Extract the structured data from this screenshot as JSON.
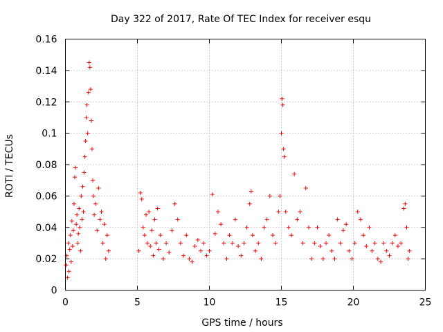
{
  "chart_data": {
    "type": "scatter",
    "title": "Day 322 of 2017, Rate Of TEC Index for receiver esqu",
    "xlabel": "GPS time / hours",
    "ylabel": "ROTI / TECUs",
    "xlim": [
      0,
      25
    ],
    "ylim": [
      0,
      0.16
    ],
    "xticks": [
      0,
      5,
      10,
      15,
      20,
      25
    ],
    "xtick_labels": [
      "0",
      "5",
      "10",
      "15",
      "20",
      "25"
    ],
    "yticks": [
      0,
      0.02,
      0.04,
      0.06,
      0.08,
      0.1,
      0.12,
      0.14,
      0.16
    ],
    "ytick_labels": [
      "0",
      "0.02",
      "0.04",
      "0.06",
      "0.08",
      "0.1",
      "0.12",
      "0.14",
      "0.16"
    ],
    "grid": true,
    "marker": "+",
    "marker_color": "#ff0000",
    "series": [
      {
        "name": "ROTI",
        "points": [
          [
            0.05,
            0.016
          ],
          [
            0.1,
            0.022
          ],
          [
            0.15,
            0.008
          ],
          [
            0.2,
            0.03
          ],
          [
            0.25,
            0.012
          ],
          [
            0.3,
            0.026
          ],
          [
            0.35,
            0.035
          ],
          [
            0.4,
            0.018
          ],
          [
            0.45,
            0.044
          ],
          [
            0.5,
            0.028
          ],
          [
            0.55,
            0.038
          ],
          [
            0.6,
            0.055
          ],
          [
            0.65,
            0.072
          ],
          [
            0.7,
            0.078
          ],
          [
            0.75,
            0.042
          ],
          [
            0.8,
            0.048
          ],
          [
            0.85,
            0.03
          ],
          [
            0.9,
            0.036
          ],
          [
            0.95,
            0.052
          ],
          [
            1.0,
            0.04
          ],
          [
            1.05,
            0.025
          ],
          [
            1.1,
            0.06
          ],
          [
            1.15,
            0.045
          ],
          [
            1.2,
            0.066
          ],
          [
            1.25,
            0.05
          ],
          [
            1.3,
            0.075
          ],
          [
            1.35,
            0.085
          ],
          [
            1.4,
            0.095
          ],
          [
            1.45,
            0.11
          ],
          [
            1.5,
            0.118
          ],
          [
            1.55,
            0.1
          ],
          [
            1.6,
            0.126
          ],
          [
            1.65,
            0.145
          ],
          [
            1.7,
            0.142
          ],
          [
            1.75,
            0.128
          ],
          [
            1.8,
            0.108
          ],
          [
            1.85,
            0.09
          ],
          [
            1.9,
            0.07
          ],
          [
            1.95,
            0.06
          ],
          [
            2.0,
            0.048
          ],
          [
            2.1,
            0.055
          ],
          [
            2.2,
            0.038
          ],
          [
            2.3,
            0.065
          ],
          [
            2.4,
            0.045
          ],
          [
            2.5,
            0.05
          ],
          [
            2.6,
            0.03
          ],
          [
            2.7,
            0.042
          ],
          [
            2.8,
            0.02
          ],
          [
            2.9,
            0.035
          ],
          [
            3.0,
            0.025
          ],
          [
            5.1,
            0.025
          ],
          [
            5.2,
            0.062
          ],
          [
            5.3,
            0.058
          ],
          [
            5.4,
            0.04
          ],
          [
            5.5,
            0.035
          ],
          [
            5.6,
            0.048
          ],
          [
            5.7,
            0.03
          ],
          [
            5.8,
            0.05
          ],
          [
            5.9,
            0.028
          ],
          [
            6.0,
            0.038
          ],
          [
            6.1,
            0.022
          ],
          [
            6.2,
            0.045
          ],
          [
            6.3,
            0.03
          ],
          [
            6.4,
            0.052
          ],
          [
            6.5,
            0.026
          ],
          [
            6.6,
            0.035
          ],
          [
            6.8,
            0.02
          ],
          [
            7.0,
            0.03
          ],
          [
            7.2,
            0.024
          ],
          [
            7.4,
            0.038
          ],
          [
            7.6,
            0.055
          ],
          [
            7.8,
            0.045
          ],
          [
            8.0,
            0.03
          ],
          [
            8.2,
            0.022
          ],
          [
            8.4,
            0.035
          ],
          [
            8.6,
            0.02
          ],
          [
            8.8,
            0.018
          ],
          [
            9.0,
            0.028
          ],
          [
            9.2,
            0.032
          ],
          [
            9.4,
            0.025
          ],
          [
            9.6,
            0.03
          ],
          [
            9.8,
            0.022
          ],
          [
            10.0,
            0.025
          ],
          [
            10.2,
            0.061
          ],
          [
            10.4,
            0.036
          ],
          [
            10.6,
            0.05
          ],
          [
            10.8,
            0.042
          ],
          [
            11.0,
            0.03
          ],
          [
            11.2,
            0.02
          ],
          [
            11.4,
            0.035
          ],
          [
            11.6,
            0.03
          ],
          [
            11.8,
            0.045
          ],
          [
            12.0,
            0.028
          ],
          [
            12.2,
            0.022
          ],
          [
            12.4,
            0.03
          ],
          [
            12.6,
            0.04
          ],
          [
            12.8,
            0.055
          ],
          [
            12.9,
            0.063
          ],
          [
            13.0,
            0.035
          ],
          [
            13.2,
            0.025
          ],
          [
            13.4,
            0.03
          ],
          [
            13.6,
            0.02
          ],
          [
            13.8,
            0.04
          ],
          [
            14.0,
            0.045
          ],
          [
            14.2,
            0.06
          ],
          [
            14.4,
            0.035
          ],
          [
            14.6,
            0.03
          ],
          [
            14.8,
            0.05
          ],
          [
            14.9,
            0.06
          ],
          [
            15.0,
            0.1
          ],
          [
            15.05,
            0.122
          ],
          [
            15.1,
            0.118
          ],
          [
            15.15,
            0.09
          ],
          [
            15.2,
            0.085
          ],
          [
            15.3,
            0.05
          ],
          [
            15.5,
            0.04
          ],
          [
            15.7,
            0.035
          ],
          [
            15.9,
            0.074
          ],
          [
            16.1,
            0.045
          ],
          [
            16.3,
            0.05
          ],
          [
            16.5,
            0.03
          ],
          [
            16.7,
            0.065
          ],
          [
            16.9,
            0.04
          ],
          [
            17.1,
            0.02
          ],
          [
            17.3,
            0.03
          ],
          [
            17.5,
            0.04
          ],
          [
            17.7,
            0.028
          ],
          [
            17.9,
            0.02
          ],
          [
            18.1,
            0.03
          ],
          [
            18.3,
            0.035
          ],
          [
            18.5,
            0.025
          ],
          [
            18.7,
            0.02
          ],
          [
            18.9,
            0.045
          ],
          [
            19.1,
            0.03
          ],
          [
            19.3,
            0.038
          ],
          [
            19.5,
            0.042
          ],
          [
            19.7,
            0.025
          ],
          [
            19.9,
            0.02
          ],
          [
            20.1,
            0.03
          ],
          [
            20.3,
            0.05
          ],
          [
            20.5,
            0.045
          ],
          [
            20.7,
            0.035
          ],
          [
            20.9,
            0.028
          ],
          [
            21.1,
            0.04
          ],
          [
            21.3,
            0.025
          ],
          [
            21.5,
            0.03
          ],
          [
            21.7,
            0.02
          ],
          [
            21.9,
            0.018
          ],
          [
            22.1,
            0.03
          ],
          [
            22.3,
            0.025
          ],
          [
            22.5,
            0.022
          ],
          [
            22.7,
            0.03
          ],
          [
            22.9,
            0.035
          ],
          [
            23.1,
            0.028
          ],
          [
            23.3,
            0.03
          ],
          [
            23.5,
            0.052
          ],
          [
            23.6,
            0.055
          ],
          [
            23.7,
            0.04
          ],
          [
            23.8,
            0.02
          ],
          [
            23.9,
            0.025
          ]
        ]
      }
    ]
  }
}
